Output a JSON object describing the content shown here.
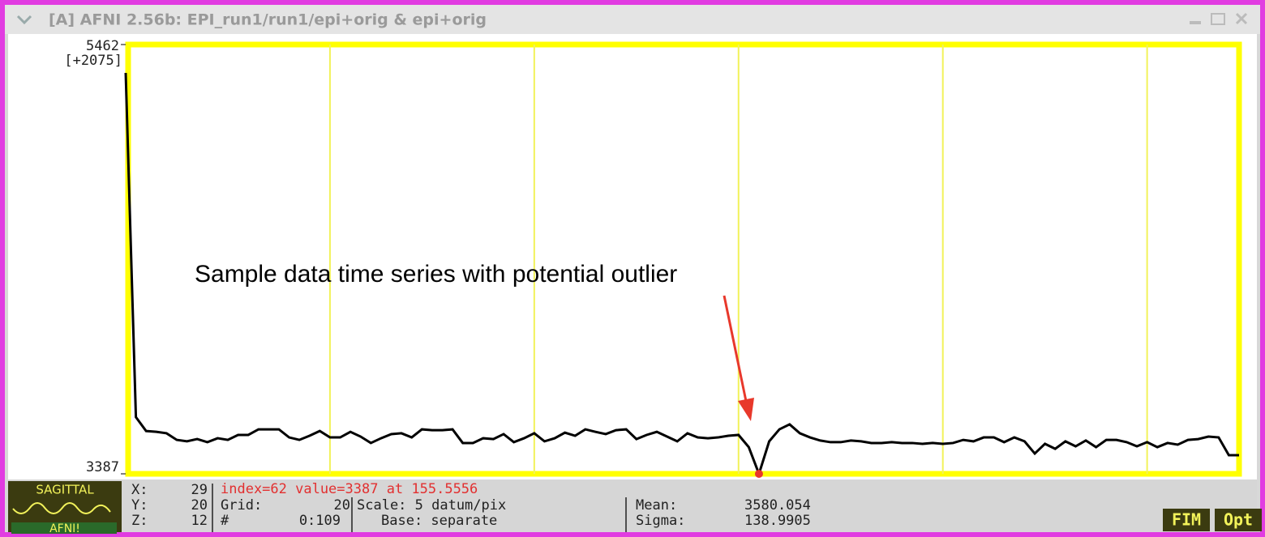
{
  "window": {
    "title": "[A] AFNI 2.56b: EPI_run1/run1/epi+orig & epi+orig"
  },
  "chart_data": {
    "type": "line",
    "annotation": "Sample data time series with potential outlier",
    "range_label": "[+2075]",
    "ylim": [
      3387,
      5462
    ],
    "yticks": [
      3387,
      5462
    ],
    "xlim": [
      0,
      109
    ],
    "xticks": [
      20,
      40,
      60,
      80,
      100
    ],
    "grid": true,
    "color": "#000000",
    "values": [
      5325,
      3661,
      3594,
      3590,
      3583,
      3551,
      3544,
      3555,
      3540,
      3559,
      3551,
      3575,
      3575,
      3602,
      3602,
      3602,
      3563,
      3551,
      3571,
      3594,
      3563,
      3563,
      3590,
      3567,
      3536,
      3559,
      3579,
      3583,
      3563,
      3602,
      3598,
      3598,
      3602,
      3536,
      3536,
      3559,
      3555,
      3579,
      3540,
      3559,
      3583,
      3544,
      3559,
      3586,
      3571,
      3602,
      3590,
      3579,
      3598,
      3602,
      3555,
      3575,
      3590,
      3567,
      3544,
      3583,
      3563,
      3559,
      3563,
      3571,
      3575,
      3516,
      3387,
      3544,
      3602,
      3626,
      3583,
      3563,
      3548,
      3540,
      3540,
      3548,
      3544,
      3536,
      3536,
      3540,
      3536,
      3536,
      3532,
      3536,
      3532,
      3536,
      3551,
      3544,
      3563,
      3563,
      3540,
      3563,
      3544,
      3485,
      3532,
      3508,
      3544,
      3520,
      3548,
      3516,
      3551,
      3551,
      3540,
      3520,
      3540,
      3516,
      3536,
      3528,
      3551,
      3555,
      3567,
      3563,
      3477,
      3477
    ]
  },
  "status": {
    "logo": [
      "SAGITTAL",
      "AFNI!"
    ],
    "coords": [
      [
        "X:",
        "29"
      ],
      [
        "Y:",
        "20"
      ],
      [
        "Z:",
        "12"
      ]
    ],
    "message": "index=62 value=3387 at 155.5556",
    "grid": [
      "Grid:",
      "20"
    ],
    "count": [
      "#",
      "0:109"
    ],
    "scale": "Scale: 5 datum/pix",
    "base": "Base: separate",
    "mean": [
      "Mean:",
      "3580.054"
    ],
    "sigma": [
      "Sigma:",
      "138.9905"
    ],
    "buttons": [
      "FIM",
      "Opt"
    ]
  }
}
